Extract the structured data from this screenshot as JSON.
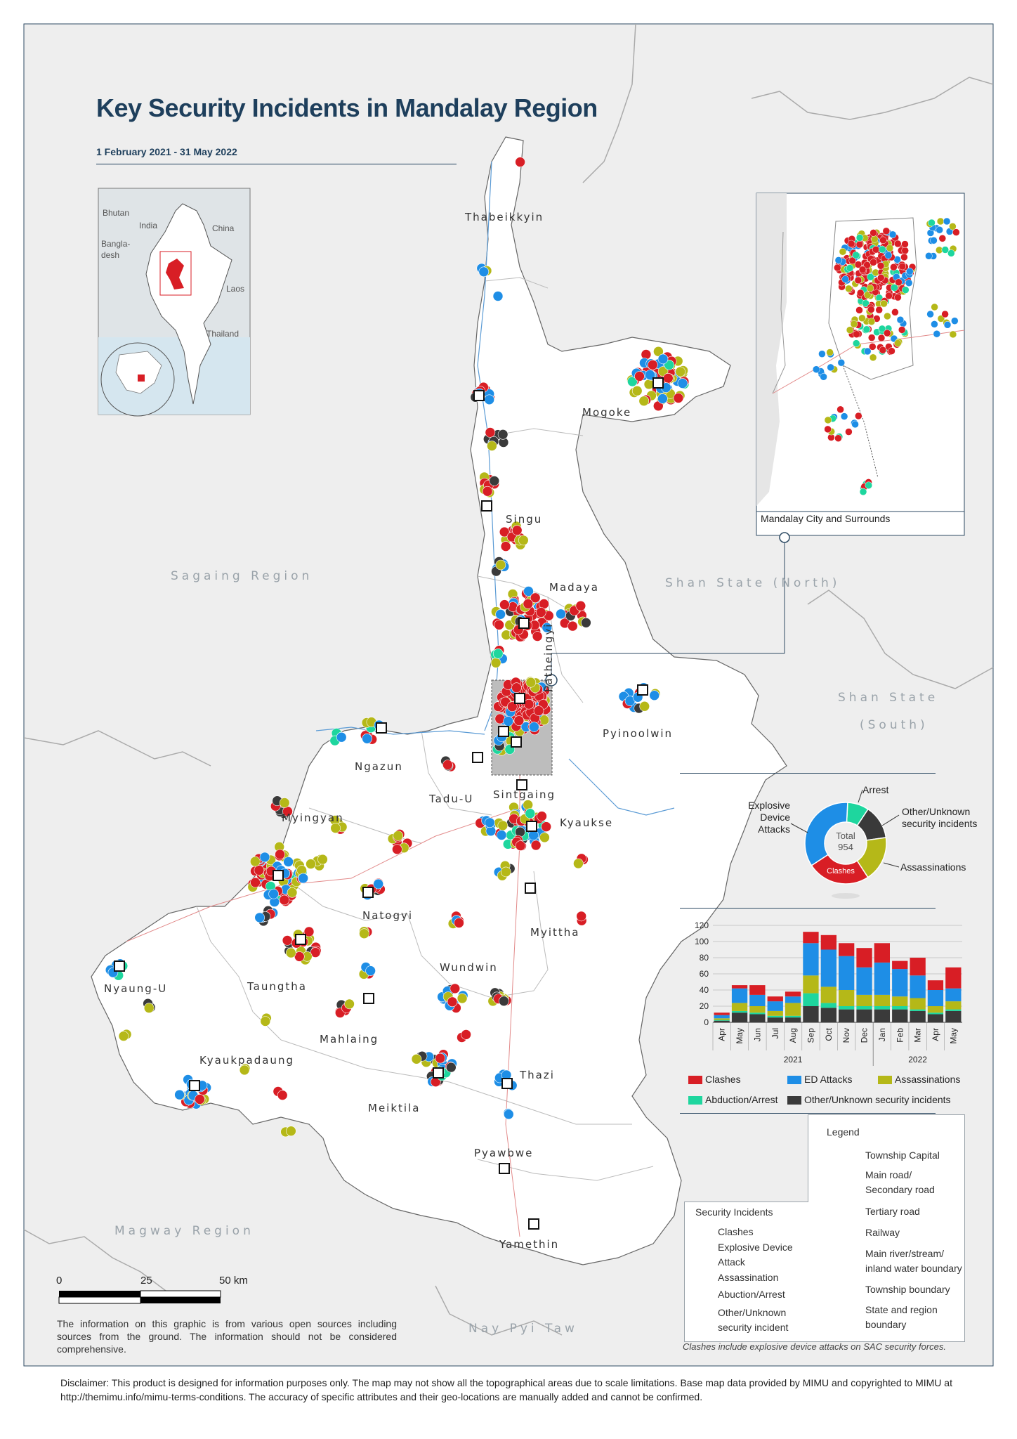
{
  "title": "Key Security Incidents in Mandalay Region",
  "subtitle": "1 February 2021 - 31 May 2022",
  "overview_map": {
    "labels": [
      "Bhutan",
      "India",
      "China",
      "Bangla-",
      "desh",
      "Laos",
      "Thailand"
    ]
  },
  "townships": [
    "Thabeikkyin",
    "Mogoke",
    "Singu",
    "Madaya",
    "Patheingyi",
    "Pyinoolwin",
    "Ngazun",
    "Tadu-U",
    "Sintgaing",
    "Kyaukse",
    "Myingyan",
    "Natogyi",
    "Myittha",
    "Nyaung-U",
    "Taungtha",
    "Wundwin",
    "Mahlaing",
    "Kyaukpadaung",
    "Meiktila",
    "Thazi",
    "Pyawbwe",
    "Yamethin"
  ],
  "regions": {
    "sagaing": "Sagaing Region",
    "shan_north": "Shan State (North)",
    "shan_south_line1": "Shan State",
    "shan_south_line2": "(South)",
    "magway": "Magway Region",
    "nay_pyi_taw": "Nay Pyi Taw"
  },
  "inset": {
    "caption": "Mandalay City and Surrounds"
  },
  "donut": {
    "total_label": "Total",
    "total_value": "954",
    "labels": {
      "arrest": "Arrest",
      "other_line1": "Other/Unknown",
      "other_line2": "security incidents",
      "assassinations": "Assassinations",
      "clashes": "Clashes",
      "ed_line1": "Explosive",
      "ed_line2": "Device",
      "ed_line3": "Attacks"
    },
    "segments": [
      {
        "name": "Abduction/Arrest",
        "fraction": 0.085,
        "color": "#1ed69e"
      },
      {
        "name": "Other/Unknown",
        "fraction": 0.135,
        "color": "#3a3a3a"
      },
      {
        "name": "Assassinations",
        "fraction": 0.18,
        "color": "#b5b818"
      },
      {
        "name": "Clashes",
        "fraction": 0.25,
        "color": "#d81e25"
      },
      {
        "name": "ED Attacks",
        "fraction": 0.35,
        "color": "#1e8ee6"
      }
    ]
  },
  "chart_data": {
    "type": "bar",
    "stacked": true,
    "categories": [
      "Apr",
      "May",
      "Jun",
      "Jul",
      "Aug",
      "Sep",
      "Oct",
      "Nov",
      "Dec",
      "Jan",
      "Feb",
      "Mar",
      "Apr",
      "May"
    ],
    "year_labels": [
      "2021",
      "2022"
    ],
    "yticks": [
      0,
      20,
      40,
      60,
      80,
      100,
      120
    ],
    "ylim": [
      0,
      120
    ],
    "grid": true,
    "series": [
      {
        "name": "Other/Unknown security incidents",
        "color": "#3a3a3a",
        "values": [
          2,
          12,
          10,
          6,
          6,
          20,
          18,
          16,
          16,
          16,
          16,
          14,
          10,
          14
        ]
      },
      {
        "name": "Abduction/Arrest",
        "color": "#1ed69e",
        "values": [
          1,
          2,
          2,
          2,
          2,
          16,
          6,
          4,
          4,
          4,
          4,
          2,
          2,
          2
        ]
      },
      {
        "name": "Assassinations",
        "color": "#b5b818",
        "values": [
          2,
          10,
          8,
          6,
          16,
          22,
          20,
          20,
          14,
          14,
          12,
          14,
          8,
          10
        ]
      },
      {
        "name": "ED Attacks",
        "color": "#1e8ee6",
        "values": [
          4,
          18,
          14,
          12,
          8,
          40,
          46,
          42,
          34,
          40,
          34,
          28,
          20,
          16
        ]
      },
      {
        "name": "Clashes",
        "color": "#d81e25",
        "values": [
          3,
          4,
          12,
          6,
          6,
          14,
          18,
          16,
          24,
          24,
          10,
          22,
          12,
          26
        ]
      }
    ]
  },
  "bar_legend": {
    "clashes": "Clashes",
    "ed": "ED Attacks",
    "assassinations": "Assassinations",
    "abduction": "Abduction/Arrest",
    "other": "Other/Unknown security incidents"
  },
  "legend": {
    "heading": "Legend",
    "township_capital": "Township Capital",
    "main_road_line1": "Main road/",
    "main_road_line2": "Secondary road",
    "tertiary_road": "Tertiary road",
    "railway": "Railway",
    "river_line1": "Main river/stream/",
    "river_line2": "inland water boundary",
    "township_boundary": "Township boundary",
    "state_boundary_line1": "State and region",
    "state_boundary_line2": "boundary"
  },
  "incident_legend": {
    "heading": "Security Incidents",
    "clashes": "Clashes",
    "ed_line1": "Explosive Device",
    "ed_line2": "Attack",
    "assassination": "Assassination",
    "abduction": "Abuction/Arrest",
    "other_line1": "Other/Unknown",
    "other_line2": "security incident"
  },
  "colors": {
    "clashes": "#d81e25",
    "ed": "#1e8ee6",
    "assassination": "#b5b818",
    "abduction": "#1ed69e",
    "other": "#3a3a3a",
    "title": "#1e3f5c"
  },
  "scale": {
    "zero": "0",
    "mid": "25",
    "end": "50 km"
  },
  "info_text": "The information on this graphic is from various open sources including sources from the ground. The information should not be considered comprehensive.",
  "note": "Clashes include explosive device attacks on SAC security forces.",
  "disclaimer": "Disclaimer: This product is designed for information purposes only. The map may not show all the topographical areas due to scale limitations. Base map data provided by MIMU and copyrighted to MIMU at http://themimu.info/mimu-terms-conditions. The accuracy of specific attributes and their geo-locations are manually added and cannot be confirmed."
}
